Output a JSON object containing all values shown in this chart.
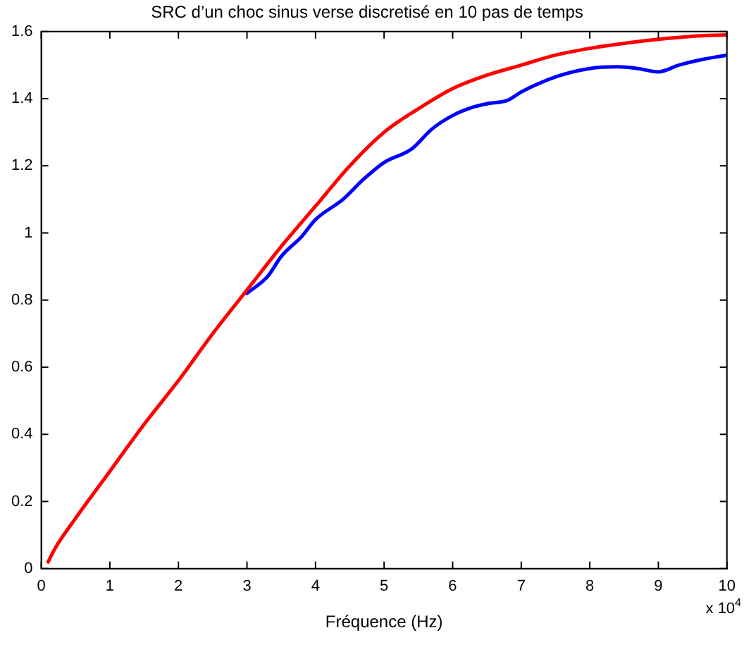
{
  "chart_data": {
    "type": "line",
    "title": "SRC d’un choc sinus verse discretisé en 10 pas de temps",
    "xlabel": "Fréquence (Hz)",
    "annotations": [
      "x 10$^{4}$"
    ],
    "xlim": [
      0,
      10
    ],
    "xticks": [
      0,
      1,
      2,
      3,
      4,
      5,
      6,
      7,
      8,
      9,
      10
    ],
    "ylim": [
      0,
      1.6
    ],
    "yticks": [
      0,
      0.2,
      0.4,
      0.6,
      0.8,
      1,
      1.2,
      1.4,
      1.6
    ],
    "grid": false,
    "legend": false,
    "marker": "none",
    "line_style": "solid",
    "series": [
      {
        "color": "#0000ff",
        "x": [
          3,
          3.3,
          3.5,
          3.8,
          4,
          4.4,
          4.7,
          5,
          5.4,
          5.7,
          6,
          6.3,
          6.5,
          6.8,
          7,
          7.5,
          8,
          8.4,
          8.7,
          9,
          9.3,
          9.6,
          10
        ],
        "values": [
          0.82,
          0.87,
          0.93,
          0.99,
          1.04,
          1.1,
          1.16,
          1.21,
          1.25,
          1.31,
          1.35,
          1.375,
          1.385,
          1.395,
          1.42,
          1.465,
          1.49,
          1.495,
          1.49,
          1.48,
          1.5,
          1.515,
          1.53
        ]
      },
      {
        "color": "#ff0000",
        "x": [
          0.1,
          0.2,
          0.5,
          1,
          1.5,
          2,
          2.5,
          3,
          3.5,
          4,
          4.5,
          5,
          5.5,
          6,
          6.5,
          7,
          7.5,
          8,
          8.5,
          9,
          9.5,
          10
        ],
        "values": [
          0.02,
          0.06,
          0.15,
          0.29,
          0.43,
          0.56,
          0.7,
          0.83,
          0.96,
          1.08,
          1.2,
          1.3,
          1.37,
          1.43,
          1.47,
          1.5,
          1.53,
          1.55,
          1.565,
          1.577,
          1.586,
          1.59
        ]
      }
    ]
  }
}
